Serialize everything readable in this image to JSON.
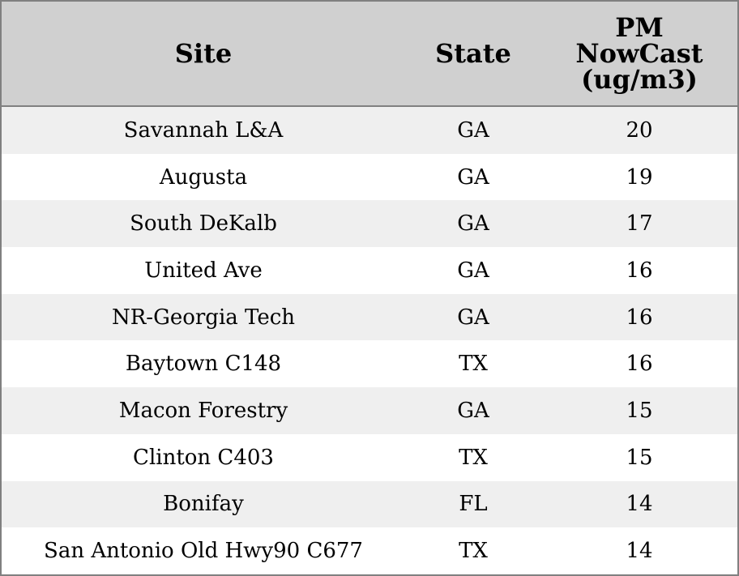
{
  "table": {
    "header": [
      "Site",
      "State",
      "PM NowCast (ug/m3)"
    ],
    "rows": [
      [
        "Savannah L&A",
        "GA",
        20
      ],
      [
        "Augusta",
        "GA",
        19
      ],
      [
        "South DeKalb",
        "GA",
        17
      ],
      [
        "United Ave",
        "GA",
        16
      ],
      [
        "NR-Georgia Tech",
        "GA",
        16
      ],
      [
        "Baytown C148",
        "TX",
        16
      ],
      [
        "Macon Forestry",
        "GA",
        15
      ],
      [
        "Clinton C403",
        "TX",
        15
      ],
      [
        "Bonifay",
        "FL",
        14
      ],
      [
        "San Antonio Old Hwy90 C677",
        "TX",
        14
      ]
    ]
  }
}
